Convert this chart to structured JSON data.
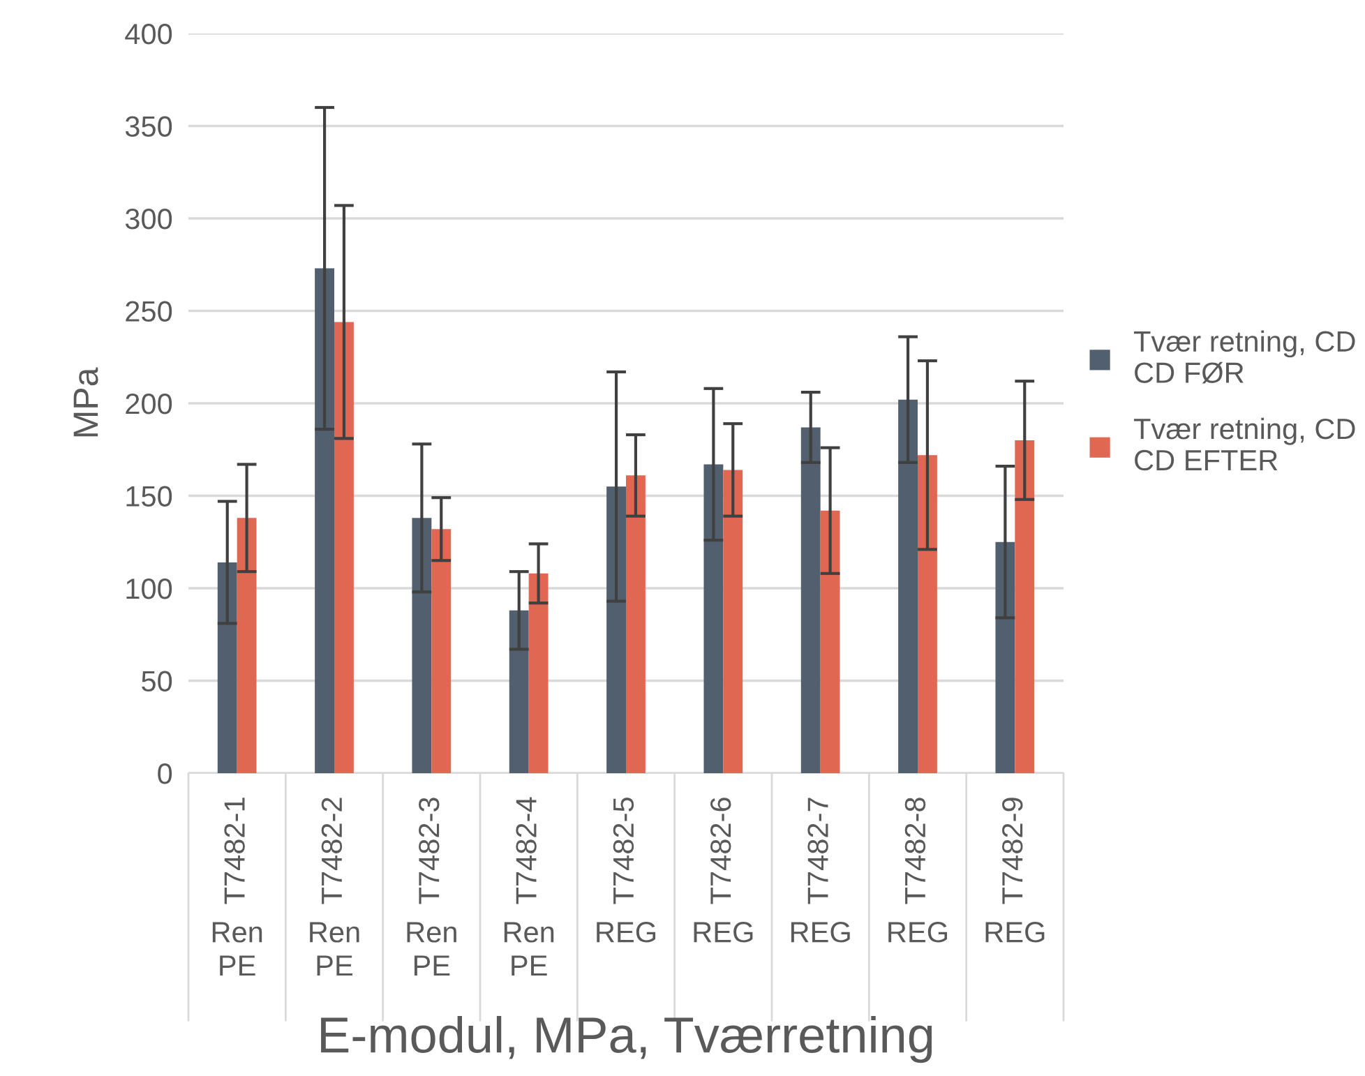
{
  "chart_data": {
    "type": "bar",
    "xlabel": "E-modul, MPa, Tværretning",
    "ylabel": "MPa",
    "categories": [
      "T7482-1",
      "T7482-2",
      "T7482-3",
      "T7482-4",
      "T7482-5",
      "T7482-6",
      "T7482-7",
      "T7482-8",
      "T7482-9"
    ],
    "annotations": [
      "Ren PE",
      "Ren PE",
      "Ren PE",
      "Ren PE",
      "REG",
      "REG",
      "REG",
      "REG",
      "REG"
    ],
    "series": [
      {
        "name": "Tvær retning, CD\nCD FØR",
        "color": "#525f6e",
        "values": [
          114,
          273,
          138,
          88,
          155,
          167,
          187,
          202,
          125
        ],
        "errors": [
          33,
          87,
          40,
          21,
          62,
          41,
          19,
          34,
          41
        ]
      },
      {
        "name": "Tvær retning, CD\nCD EFTER",
        "color": "#e06752",
        "values": [
          138,
          244,
          132,
          108,
          161,
          164,
          142,
          172,
          180
        ],
        "errors": [
          29,
          63,
          17,
          16,
          22,
          25,
          34,
          51,
          32
        ]
      }
    ],
    "ylim": [
      0,
      400
    ],
    "yticks": [
      0,
      50,
      100,
      150,
      200,
      250,
      300,
      350,
      400
    ],
    "grid": "y",
    "legend": "right"
  }
}
